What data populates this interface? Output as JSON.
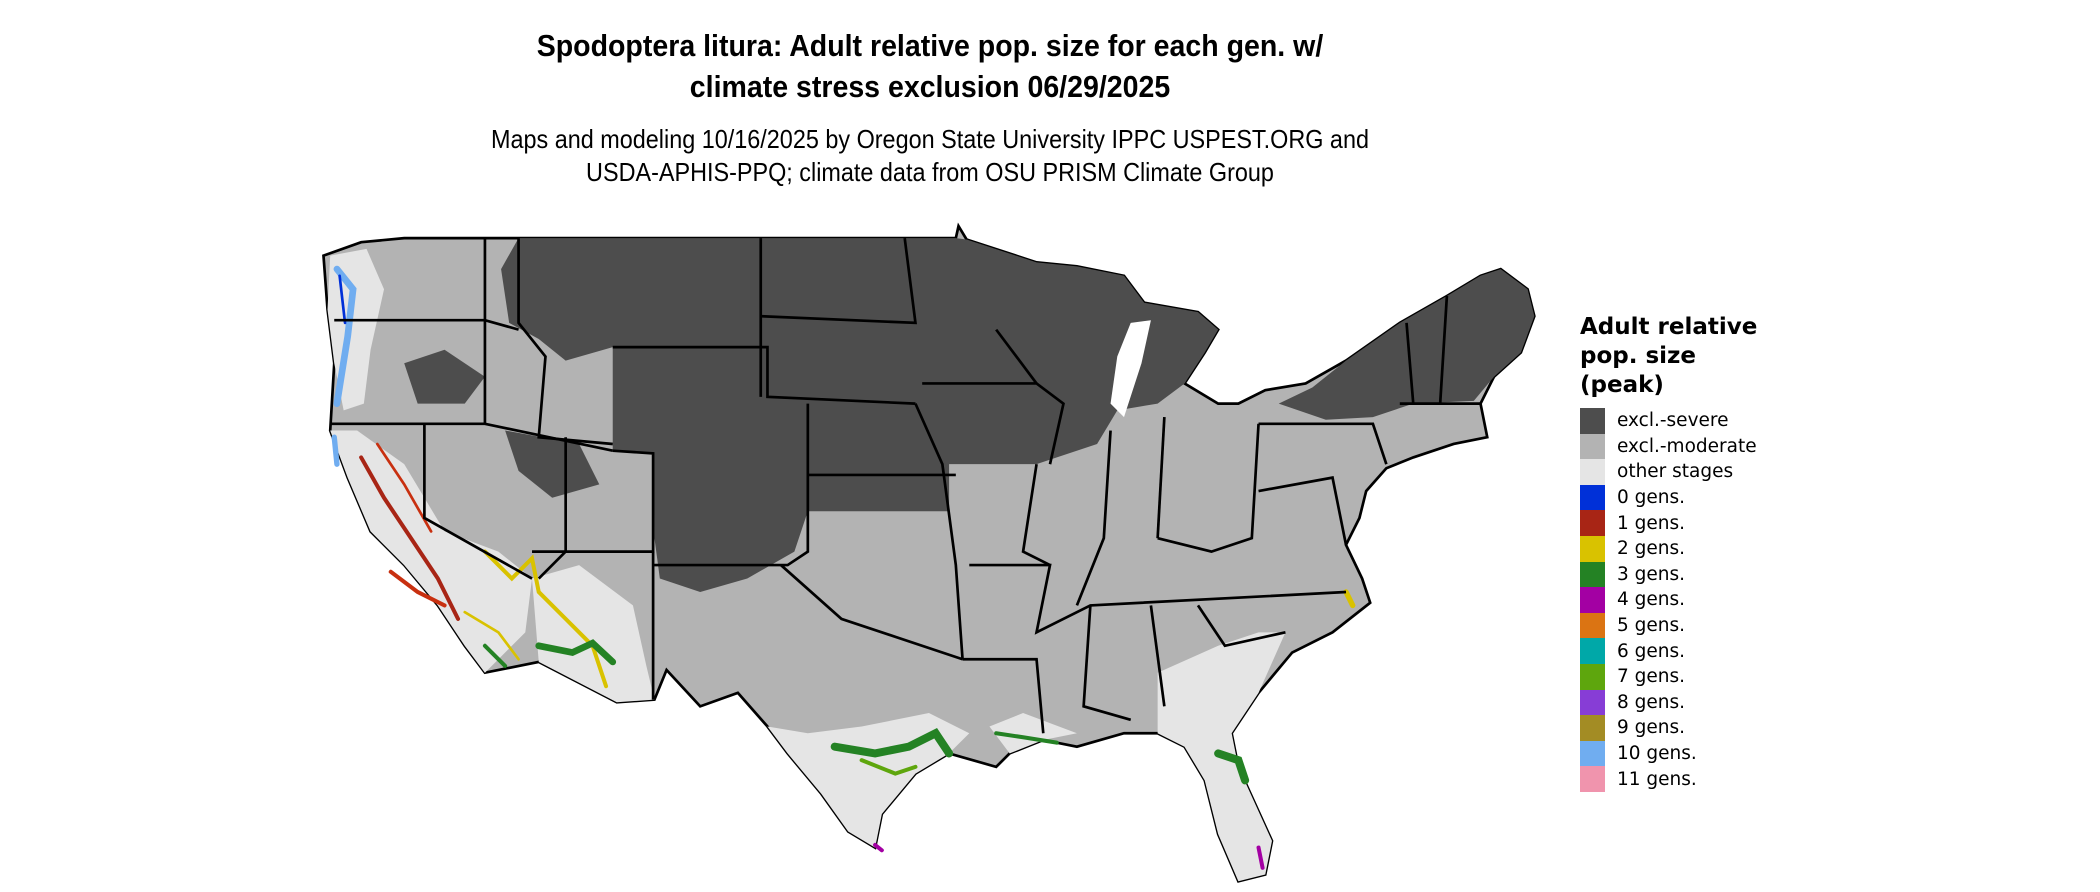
{
  "title": {
    "line1": "Spodoptera litura: Adult relative pop. size for each gen. w/",
    "line2": "climate stress exclusion 06/29/2025"
  },
  "subtitle": {
    "line1": "Maps and modeling 10/16/2025 by Oregon State University IPPC USPEST.ORG and",
    "line2": "USDA-APHIS-PPQ; climate data from OSU PRISM Climate Group"
  },
  "map": {
    "background_color": "#B3B3B3",
    "border_color": "#000000"
  },
  "legend": {
    "title_lines": [
      "Adult relative",
      "pop. size",
      "(peak)"
    ],
    "items": [
      {
        "label": "excl.-severe",
        "color": "#4D4D4D"
      },
      {
        "label": "excl.-moderate",
        "color": "#B3B3B3"
      },
      {
        "label": "other stages",
        "color": "#E5E5E5"
      },
      {
        "label": "0 gens.",
        "color": "#0030D8"
      },
      {
        "label": "1 gens.",
        "color": "#A82515"
      },
      {
        "label": "2 gens.",
        "color": "#D9C200"
      },
      {
        "label": "3 gens.",
        "color": "#248224"
      },
      {
        "label": "4 gens.",
        "color": "#A300A3"
      },
      {
        "label": "5 gens.",
        "color": "#DB7413"
      },
      {
        "label": "6 gens.",
        "color": "#00A8A8"
      },
      {
        "label": "7 gens.",
        "color": "#5EA60D"
      },
      {
        "label": "8 gens.",
        "color": "#873DD6"
      },
      {
        "label": "9 gens.",
        "color": "#A38C24"
      },
      {
        "label": "10 gens.",
        "color": "#70ADF0"
      },
      {
        "label": "11 gens.",
        "color": "#F094AD"
      }
    ]
  }
}
